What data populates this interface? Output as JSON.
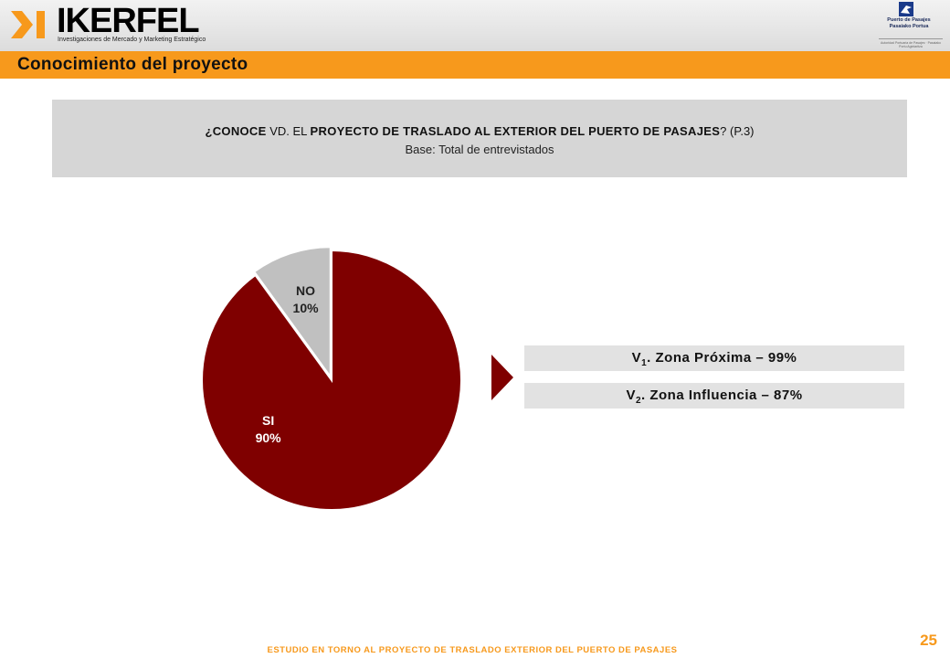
{
  "header": {
    "logo_word": "IKERFEL",
    "logo_tagline": "Investigaciones de Mercado y Marketing Estratégico",
    "partner_logo_name_line1": "Puerto de Pasajes",
    "partner_logo_name_line2": "Pasaiako Portua",
    "partner_logo_sub": "Autoridad Portuaria de Pasajes · Pasaiako Portu Agintaritza"
  },
  "title": "Conocimiento del proyecto",
  "question": {
    "prefix": "¿CONOCE",
    "middle": " VD. EL ",
    "main": "PROYECTO DE TRASLADO AL EXTERIOR DEL PUERTO DE PASAJES",
    "suffix": "? (P.3)",
    "base": "Base: Total de entrevistados"
  },
  "chart_data": {
    "type": "pie",
    "categories": [
      "SI",
      "NO"
    ],
    "values": [
      90,
      10
    ],
    "labels": [
      "90%",
      "10%"
    ],
    "colors": [
      "#7f0000",
      "#c0c0c0"
    ]
  },
  "zones": [
    {
      "prefix": "V",
      "sub": "1",
      "text": ". Zona Próxima – 99%"
    },
    {
      "prefix": "V",
      "sub": "2",
      "text": ". Zona Influencia – 87%"
    }
  ],
  "footer": "ESTUDIO EN TORNO AL PROYECTO DE TRASLADO EXTERIOR DEL PUERTO DE PASAJES",
  "page_number": "25",
  "colors": {
    "accent": "#f7991c",
    "dark_red": "#7f0000",
    "grey": "#c0c0c0"
  }
}
